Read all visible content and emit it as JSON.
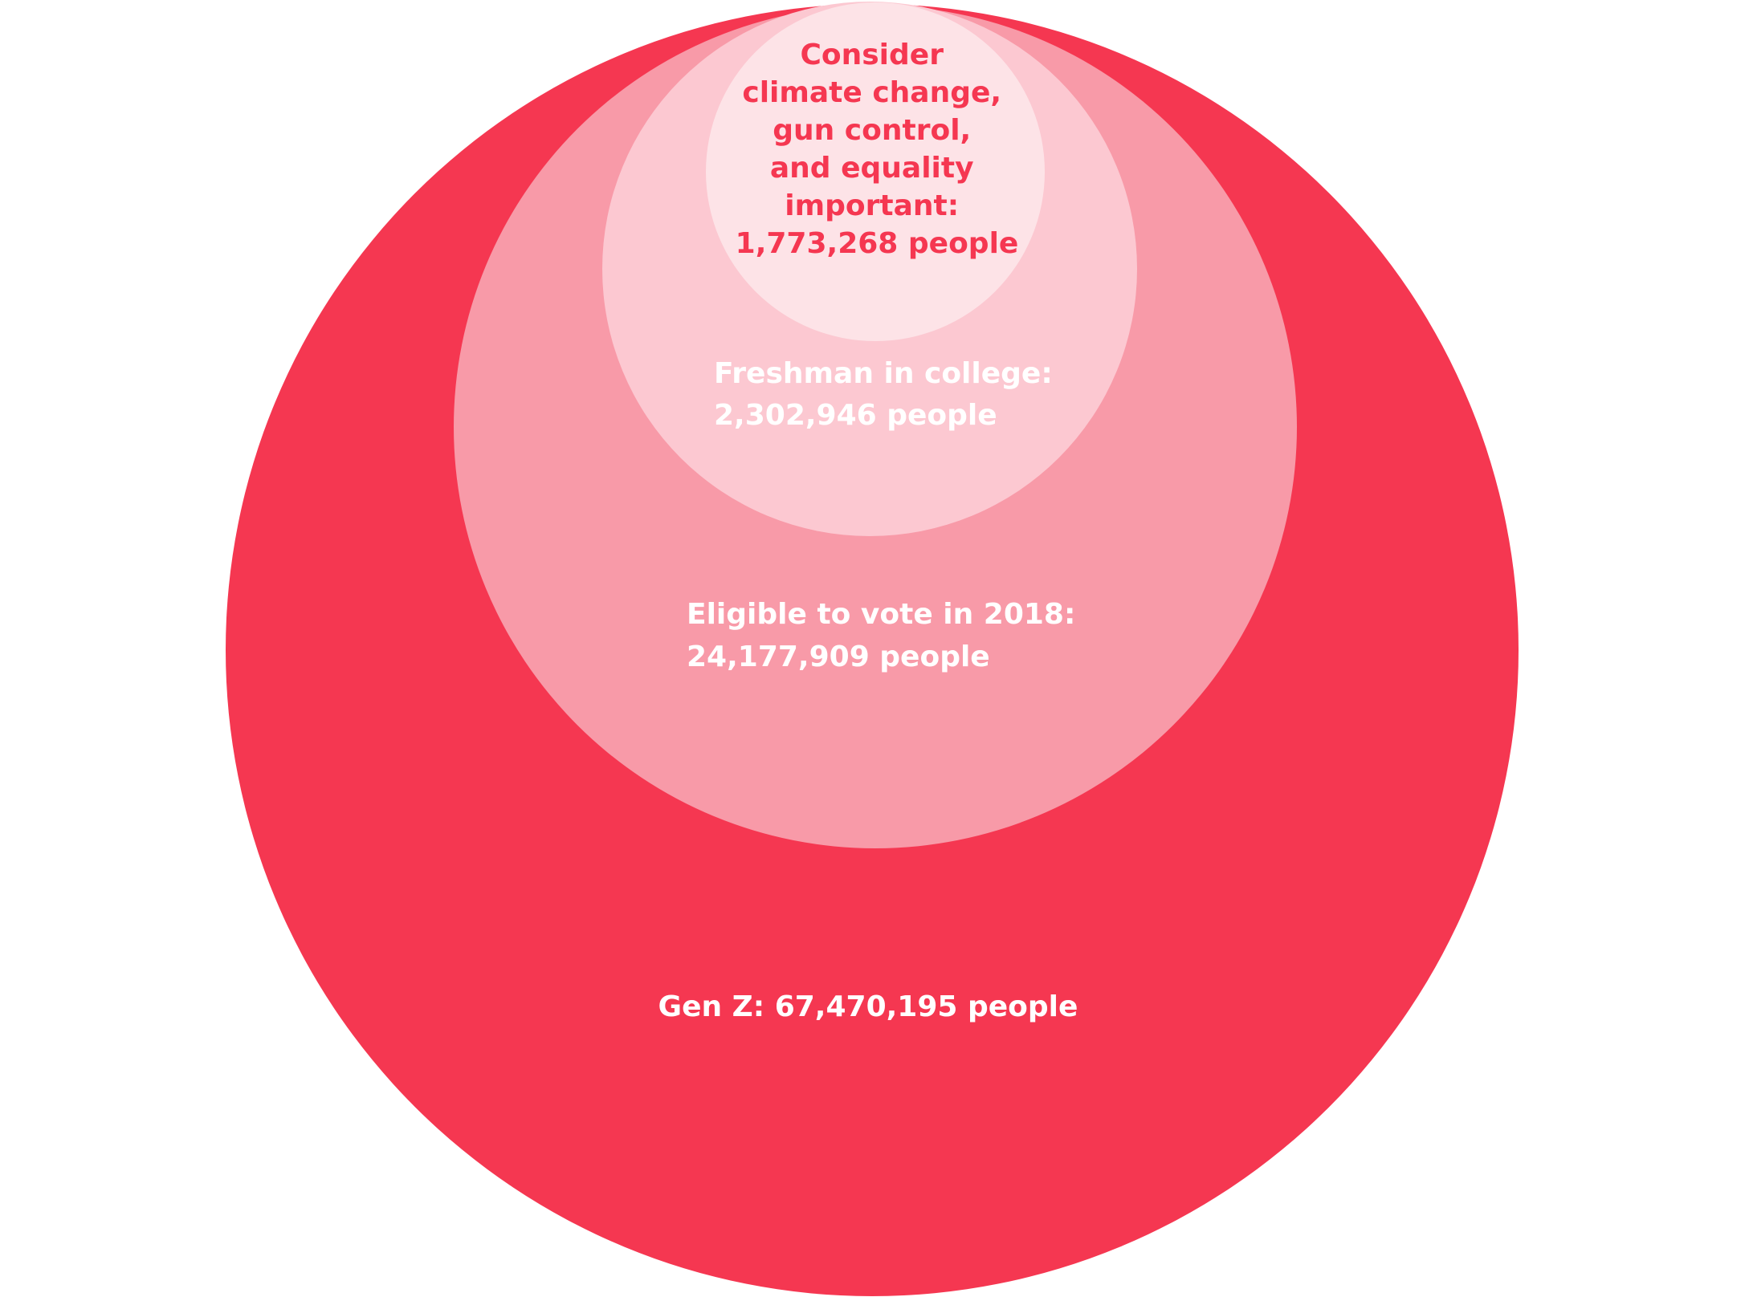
{
  "colors": {
    "background": "#ffffff",
    "gen_z": "#f53751",
    "eligible_to_vote": "#f89aa8",
    "freshman": "#fcc8d1",
    "consider_issues": "#fde3e7",
    "text_light": "#ffffff",
    "text_accent": "#f53751"
  },
  "circles": [
    {
      "id": "gen-z",
      "count": 67470195,
      "label_lines": [
        "Gen Z: 67,470,195 people"
      ]
    },
    {
      "id": "eligible-to-vote",
      "count": 24177909,
      "label_lines": [
        "Eligible to vote in 2018:",
        "24,177,909 people"
      ]
    },
    {
      "id": "freshman",
      "count": 2302946,
      "label_lines": [
        "Freshman in college:",
        "2,302,946 people"
      ]
    },
    {
      "id": "consider-issues",
      "count": 1773268,
      "label_lines": [
        "Consider",
        "climate change,",
        "gun control,",
        "and equality",
        "important:",
        "1,773,268 people"
      ]
    }
  ]
}
